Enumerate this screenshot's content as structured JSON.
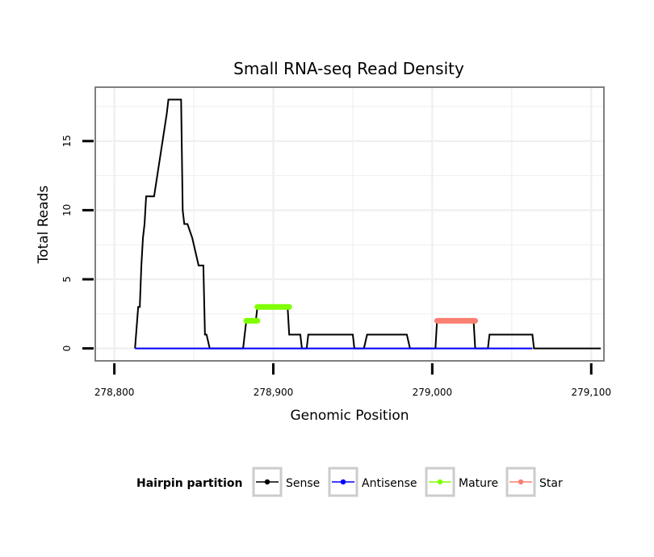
{
  "chart_data": {
    "type": "line",
    "title": "Small RNA-seq Read Density",
    "xlabel": "Genomic Position",
    "ylabel": "Total Reads",
    "xlim": [
      278788,
      279108
    ],
    "ylim": [
      -0.9,
      18.9
    ],
    "x_ticks": [
      278800,
      278900,
      279000,
      279100
    ],
    "x_tick_labels": [
      "278,800",
      "278,900",
      "279,000",
      "279,100"
    ],
    "y_ticks": [
      0,
      5,
      10,
      15
    ],
    "y_tick_labels": [
      "0",
      "5",
      "10",
      "15"
    ],
    "grid": true,
    "legend": {
      "title": "Hairpin partition",
      "position": "bottom",
      "entries": [
        "Sense",
        "Antisense",
        "Mature",
        "Star"
      ]
    },
    "series": [
      {
        "name": "Sense",
        "color": "#000000",
        "x": [
          278813,
          278815,
          278816,
          278817,
          278817,
          278818,
          278818,
          278819,
          278819,
          278820,
          278820,
          278821,
          278821,
          278822,
          278822,
          278823,
          278823,
          278825,
          278825,
          278833,
          278833,
          278834,
          278834,
          278836,
          278836,
          278842,
          278842,
          278843,
          278843,
          278844,
          278844,
          278846,
          278846,
          278849,
          278849,
          278851,
          278851,
          278853,
          278853,
          278856,
          278856,
          278857,
          278857,
          278858,
          278858,
          278860,
          278861,
          278881,
          278883,
          278889,
          278890,
          278909,
          278910,
          278917,
          278918,
          278921,
          278922,
          278950,
          278951,
          278957,
          278959,
          278984,
          278986,
          279002,
          279003,
          279026,
          279027,
          279035,
          279036,
          279063,
          279064,
          279106
        ],
        "y": [
          0,
          3,
          3,
          6,
          6,
          8,
          8,
          9,
          9,
          11,
          11,
          11,
          11,
          11,
          11,
          11,
          11,
          11,
          11,
          17,
          17,
          18,
          18,
          18,
          18,
          18,
          18,
          10,
          10,
          9,
          9,
          9,
          9,
          8,
          8,
          7,
          7,
          6,
          6,
          6,
          6,
          1,
          1,
          1,
          1,
          0,
          0,
          0,
          2,
          2,
          3,
          3,
          1,
          1,
          0,
          0,
          1,
          1,
          0,
          0,
          1,
          1,
          0,
          0,
          2,
          2,
          0,
          0,
          1,
          1,
          0,
          0
        ]
      },
      {
        "name": "Antisense",
        "color": "#0000ff",
        "x": [
          278813,
          279063
        ],
        "y": [
          0,
          0
        ]
      },
      {
        "name": "Mature",
        "color": "#7fff00",
        "segments": [
          {
            "x": [
              278883,
              278890
            ],
            "y": 2
          },
          {
            "x": [
              278890,
              278910
            ],
            "y": 3
          }
        ]
      },
      {
        "name": "Star",
        "color": "#fa8072",
        "segments": [
          {
            "x": [
              279003,
              279027
            ],
            "y": 2
          }
        ]
      }
    ]
  }
}
